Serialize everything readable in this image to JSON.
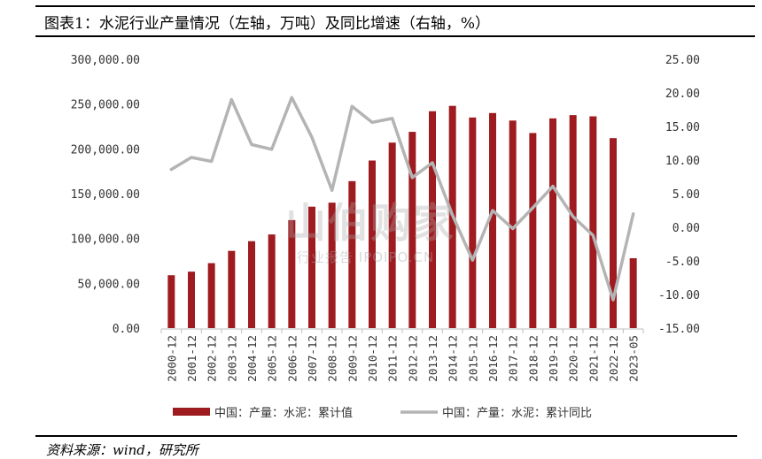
{
  "title": "图表1：水泥行业产量情况（左轴，万吨）及同比增速（右轴，%）",
  "source": "资料来源：wind，研究所",
  "watermark": {
    "main": "山伯购家",
    "sub": "行业报告 IPOIPO.CN"
  },
  "colors": {
    "bar": "#9E1B20",
    "line": "#B4B4B4",
    "axis_text": "#333333"
  },
  "chart_data": {
    "type": "bar+line",
    "categories": [
      "2000-12",
      "2001-12",
      "2002-12",
      "2003-12",
      "2004-12",
      "2005-12",
      "2006-12",
      "2007-12",
      "2008-12",
      "2009-12",
      "2010-12",
      "2011-12",
      "2012-12",
      "2013-12",
      "2014-12",
      "2015-12",
      "2016-12",
      "2017-12",
      "2018-12",
      "2019-12",
      "2020-12",
      "2021-12",
      "2022-12",
      "2023-05"
    ],
    "series": [
      {
        "name": "中国：产量：水泥：累计值",
        "type": "bar",
        "axis": "left",
        "values": [
          59000,
          63000,
          72500,
          86200,
          97000,
          104500,
          120500,
          135500,
          140000,
          164000,
          187000,
          207000,
          219000,
          242000,
          248000,
          235000,
          240000,
          231600,
          217700,
          234000,
          237700,
          236300,
          212000,
          78000
        ]
      },
      {
        "name": "中国：产量：水泥：累计同比",
        "type": "line",
        "axis": "right",
        "values": [
          8.6,
          10.4,
          9.8,
          19.0,
          12.3,
          11.6,
          19.3,
          13.4,
          5.5,
          18.0,
          15.6,
          16.2,
          7.4,
          9.6,
          1.8,
          -4.9,
          2.5,
          -0.2,
          2.9,
          6.1,
          1.6,
          -1.2,
          -10.8,
          2.0
        ]
      }
    ],
    "left_axis": {
      "min": 0,
      "max": 300000,
      "step": 50000,
      "ticks": [
        "0.00",
        "50,000.00",
        "100,000.00",
        "150,000.00",
        "200,000.00",
        "250,000.00",
        "300,000.00"
      ]
    },
    "right_axis": {
      "min": -15,
      "max": 25,
      "step": 5,
      "ticks": [
        "-15.00",
        "-10.00",
        "-5.00",
        "0.00",
        "5.00",
        "10.00",
        "15.00",
        "20.00",
        "25.00"
      ]
    },
    "grid": false,
    "legend_position": "bottom"
  }
}
